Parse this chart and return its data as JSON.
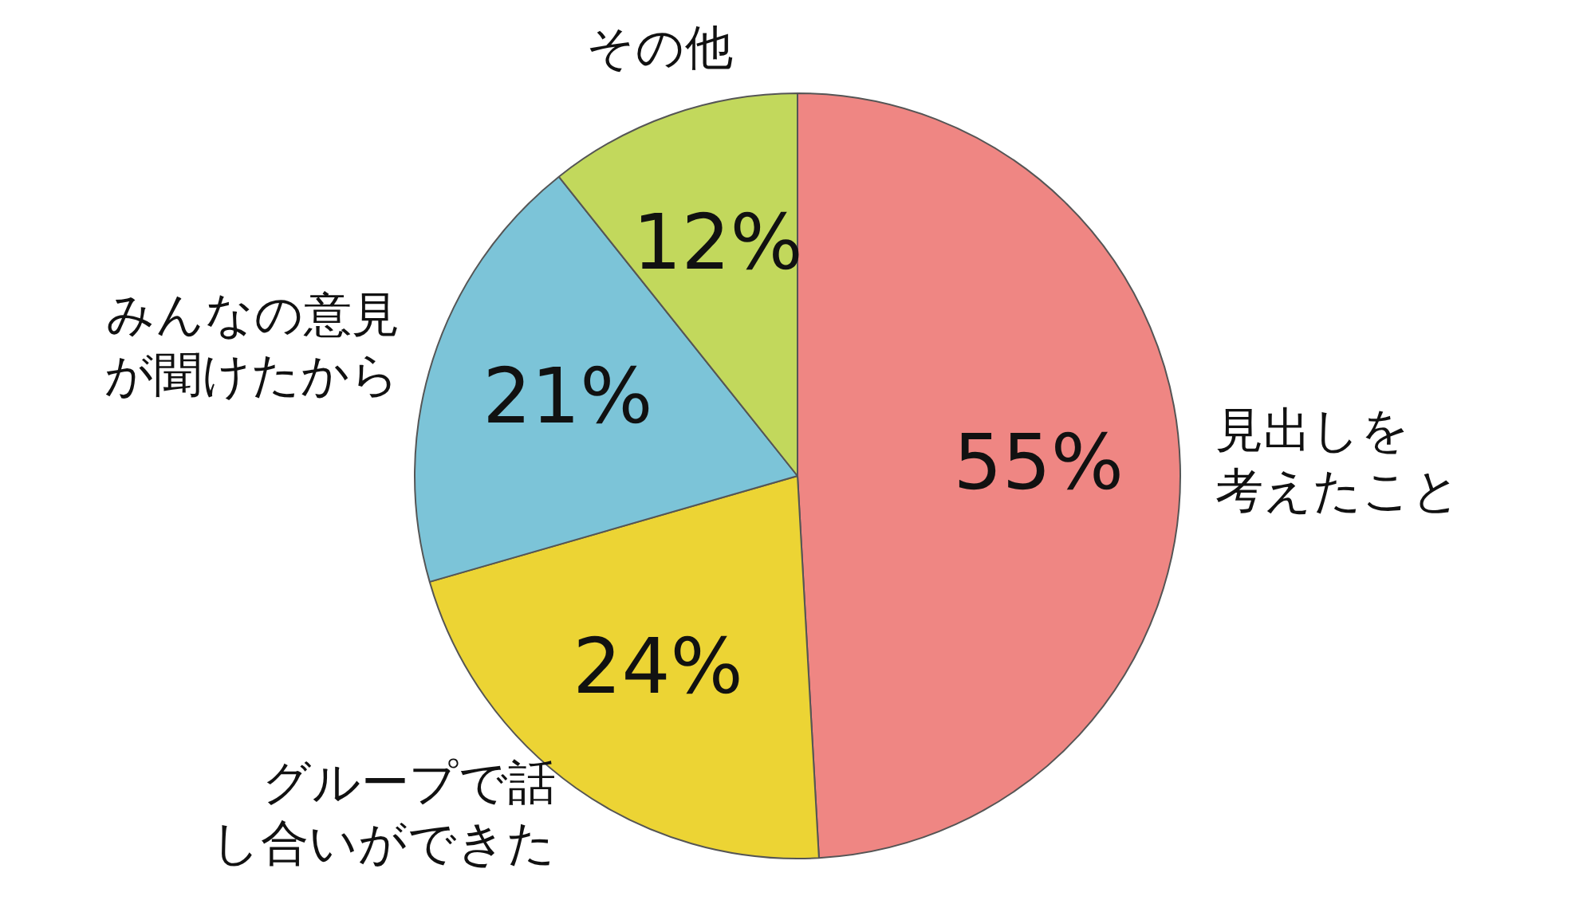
{
  "chart_data": {
    "type": "pie",
    "categories": [
      "見出しを考えたこと",
      "グループで話し合いができた",
      "みんなの意見が聞けたから",
      "その他"
    ],
    "values": [
      55,
      24,
      21,
      12
    ],
    "value_labels": [
      "55%",
      "24%",
      "21%",
      "12%"
    ],
    "colors": [
      "#ef8683",
      "#ecd434",
      "#7cc4d8",
      "#c2d85c"
    ],
    "legend": false
  }
}
